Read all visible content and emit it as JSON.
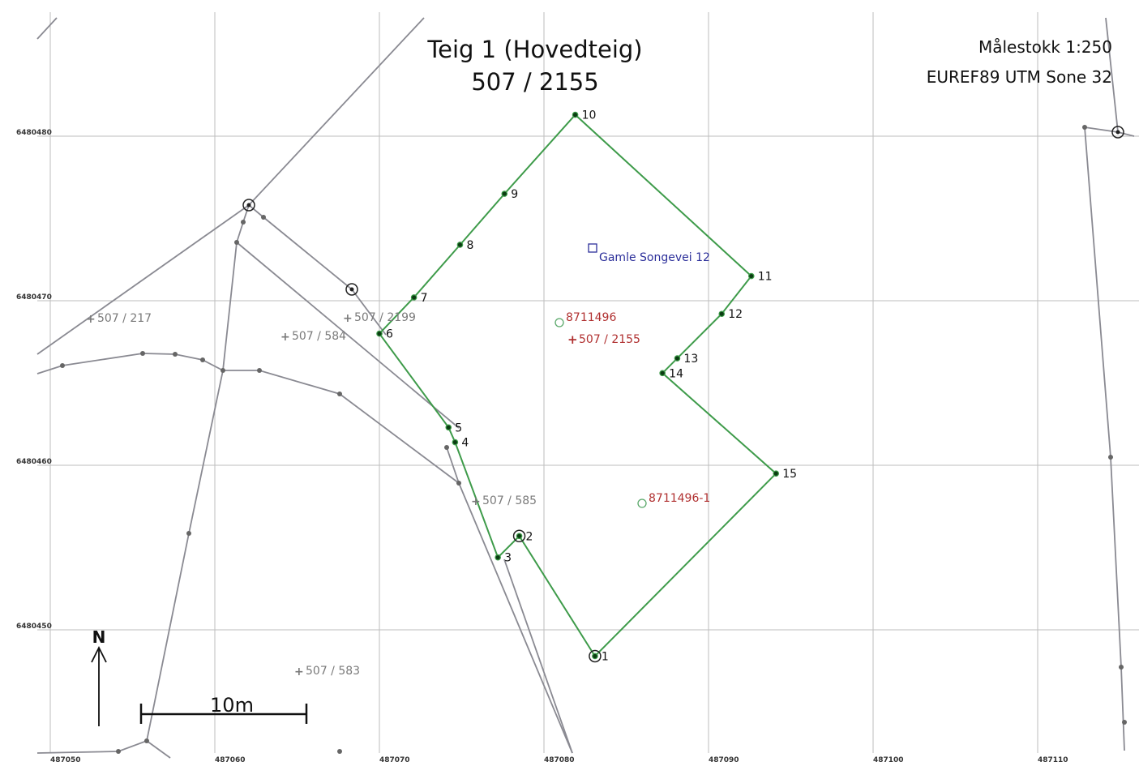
{
  "header": {
    "title_line1": "Teig 1 (Hovedteig)",
    "title_line2": "507 / 2155",
    "scale_text": "Målestokk 1:250",
    "crs_text": "EUREF89 UTM Sone 32"
  },
  "grid": {
    "x_ticks": [
      "487050",
      "487060",
      "487070",
      "487080",
      "487090",
      "487100",
      "487110"
    ],
    "y_ticks": [
      "6480480",
      "6480470",
      "6480460",
      "6480450"
    ]
  },
  "scale_bar": {
    "label": "10m"
  },
  "north_arrow": {
    "label": "N"
  },
  "boundary": {
    "color": "#3e9b4a",
    "points": [
      {
        "label": "1",
        "e": 487083.1,
        "n": 6480448.4
      },
      {
        "label": "2",
        "e": 487078.5,
        "n": 6480455.7
      },
      {
        "label": "3",
        "e": 487077.2,
        "n": 6480454.4
      },
      {
        "label": "4",
        "e": 487074.6,
        "n": 6480461.4
      },
      {
        "label": "5",
        "e": 487074.2,
        "n": 6480462.3
      },
      {
        "label": "6",
        "e": 487070.0,
        "n": 6480468.0
      },
      {
        "label": "7",
        "e": 487072.1,
        "n": 6480470.2
      },
      {
        "label": "8",
        "e": 487074.9,
        "n": 6480473.4
      },
      {
        "label": "9",
        "e": 487077.6,
        "n": 6480476.5
      },
      {
        "label": "10",
        "e": 487081.9,
        "n": 6480481.3
      },
      {
        "label": "11",
        "e": 487092.6,
        "n": 6480471.5
      },
      {
        "label": "12",
        "e": 487090.8,
        "n": 6480469.2
      },
      {
        "label": "13",
        "e": 487088.1,
        "n": 6480466.5
      },
      {
        "label": "14",
        "e": 487087.2,
        "n": 6480465.6
      },
      {
        "label": "15",
        "e": 487094.1,
        "n": 6480459.5
      }
    ]
  },
  "address": {
    "label": "Gamle Songevei 12",
    "color": "#2c2f9a"
  },
  "buildings": [
    {
      "label": "8711496",
      "color": "#b03030"
    },
    {
      "label": "8711496-1",
      "color": "#b03030"
    }
  ],
  "parcels": {
    "own": {
      "label": "507 / 2155",
      "color": "#b03030"
    },
    "neighbours": [
      {
        "label": "507 / 217"
      },
      {
        "label": "507 / 2199"
      },
      {
        "label": "507 / 584"
      },
      {
        "label": "507 / 585"
      },
      {
        "label": "507 / 583"
      }
    ],
    "neighbour_color": "#7a7a7a"
  },
  "colors": {
    "grid": "#bdbdbd",
    "neighbour_lines": "#8a8a92"
  }
}
